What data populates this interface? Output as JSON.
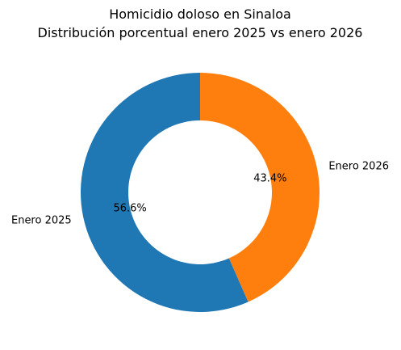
{
  "chart_data": {
    "type": "pie",
    "style": "donut",
    "title_lines": [
      "Homicidio doloso en Sinaloa",
      "Distribución porcentual enero 2025 vs enero 2026"
    ],
    "slices": [
      {
        "label": "Enero 2025",
        "value": 56.6,
        "pct_label": "56.6%",
        "color": "#1f77b4"
      },
      {
        "label": "Enero 2026",
        "value": 43.4,
        "pct_label": "43.4%",
        "color": "#ff7f0e"
      }
    ]
  }
}
